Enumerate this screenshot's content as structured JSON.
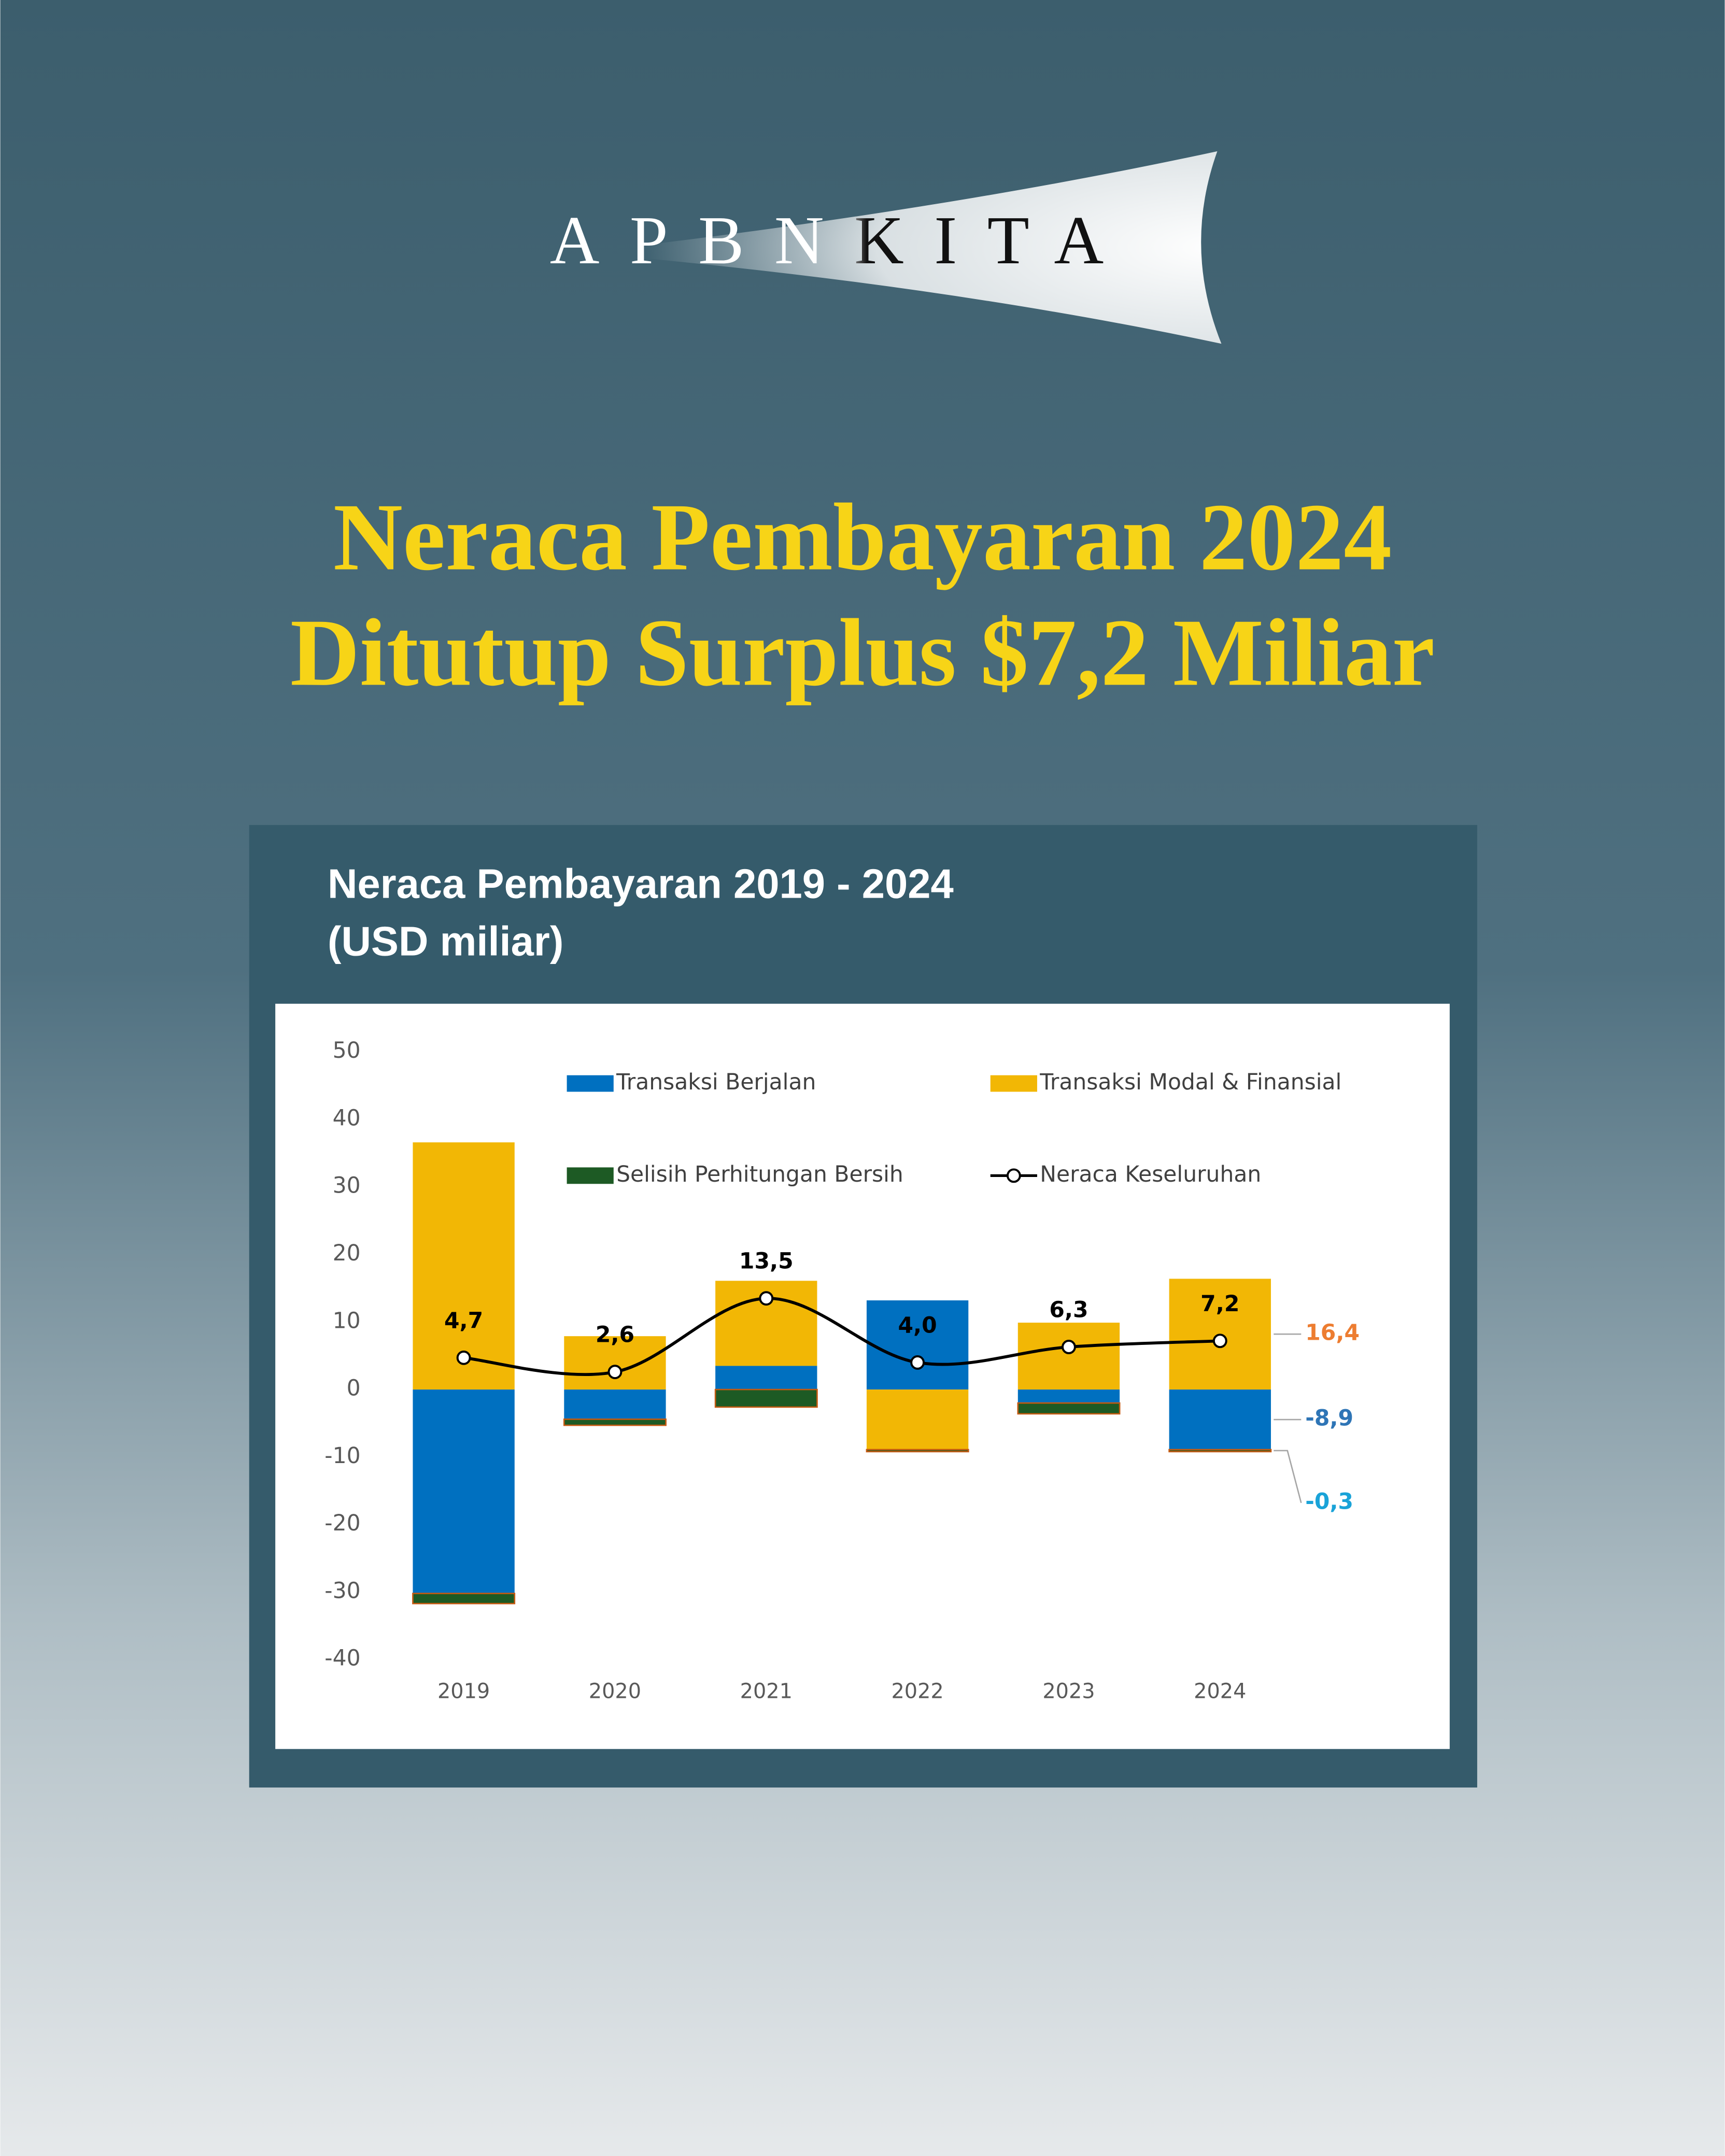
{
  "header": {
    "logo": "APBNKITA",
    "title_lines": [
      "Neraca Pembayaran 2024",
      "Ditutup Surplus $7,2 Miliar"
    ]
  },
  "chart_data": {
    "type": "bar",
    "title": "Neraca Pembayaran 2019 - 2024",
    "subtitle": "(USD miliar)",
    "categories": [
      "2019",
      "2020",
      "2021",
      "2022",
      "2023",
      "2024"
    ],
    "ylim": [
      -40,
      50
    ],
    "yticks": [
      -40,
      -30,
      -20,
      -10,
      0,
      10,
      20,
      30,
      40,
      50
    ],
    "series": [
      {
        "name": "Transaksi Berjalan",
        "color": "#0070c0",
        "values": [
          -30.2,
          -4.4,
          3.5,
          13.2,
          -2.0,
          -8.9
        ],
        "value_labels": [
          null,
          null,
          null,
          null,
          null,
          "-8,9"
        ],
        "label_color": "#2e75b6"
      },
      {
        "name": "Transaksi Modal & Finansial",
        "color": "#f2b705",
        "values": [
          36.6,
          7.9,
          12.6,
          -8.9,
          9.9,
          16.4
        ],
        "value_labels": [
          null,
          null,
          null,
          null,
          null,
          "16,4"
        ],
        "label_color": "#ed7d31"
      },
      {
        "name": "Selisih Perhitungan Bersih",
        "color": "#1d5a24",
        "values": [
          -1.5,
          -0.9,
          -2.6,
          -0.3,
          -1.6,
          -0.3
        ],
        "value_labels": [
          null,
          null,
          null,
          null,
          null,
          "-0,3"
        ],
        "label_color": "#1aa3d8"
      },
      {
        "name": "Neraca Keseluruhan",
        "type": "line",
        "color": "#000000",
        "values": [
          4.7,
          2.6,
          13.5,
          4.0,
          6.3,
          7.2
        ],
        "value_labels": [
          "4,7",
          "2,6",
          "13,5",
          "4,0",
          "6,3",
          "7,2"
        ]
      }
    ]
  }
}
